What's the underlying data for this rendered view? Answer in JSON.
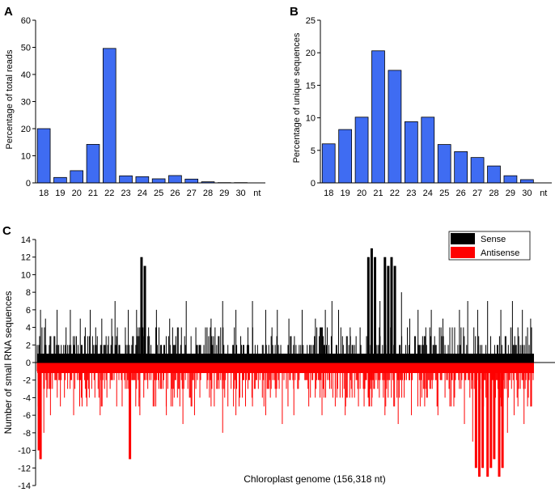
{
  "chart_data": [
    {
      "panel": "A",
      "type": "bar",
      "categories": [
        "18",
        "19",
        "20",
        "21",
        "22",
        "23",
        "24",
        "25",
        "26",
        "27",
        "28",
        "29",
        "30"
      ],
      "unit_label": "nt",
      "values": [
        20.0,
        2.0,
        4.5,
        14.2,
        49.6,
        2.6,
        2.3,
        1.5,
        2.7,
        1.4,
        0.4,
        0.1,
        0.1
      ],
      "ylabel": "Percentage of total reads",
      "ylim": [
        0,
        60
      ],
      "yticks": [
        "0",
        "10",
        "20",
        "30",
        "40",
        "50",
        "60"
      ],
      "bar_color": "#3f6cf2"
    },
    {
      "panel": "B",
      "type": "bar",
      "categories": [
        "18",
        "19",
        "20",
        "21",
        "22",
        "23",
        "24",
        "25",
        "26",
        "27",
        "28",
        "29",
        "30"
      ],
      "unit_label": "nt",
      "values": [
        6.0,
        8.2,
        10.1,
        20.3,
        17.3,
        9.4,
        10.1,
        5.9,
        4.8,
        3.9,
        2.6,
        1.1,
        0.5
      ],
      "ylabel": "Percentage of unique sequences",
      "ylim": [
        0,
        25
      ],
      "yticks": [
        "0",
        "5",
        "10",
        "15",
        "20",
        "25"
      ],
      "bar_color": "#3f6cf2"
    },
    {
      "panel": "C",
      "type": "bar",
      "xlabel": "Chloroplast genome (156,318 nt)",
      "ylabel": "Number of small RNA sequences",
      "ylim": [
        -14,
        14
      ],
      "yticks": [
        "-14",
        "-12",
        "-10",
        "-8",
        "-6",
        "-4",
        "-2",
        "0",
        "2",
        "4",
        "6",
        "8",
        "10",
        "12",
        "14"
      ],
      "legend_position": "top-right",
      "series": [
        {
          "name": "Sense",
          "color": "#000000"
        },
        {
          "name": "Antisense",
          "color": "#ff0000"
        }
      ],
      "sense_peaks": [
        {
          "x": 0.02,
          "value": 6
        },
        {
          "x": 0.05,
          "value": 5
        },
        {
          "x": 0.12,
          "value": 6
        },
        {
          "x": 0.2,
          "value": 6
        },
        {
          "x": 0.26,
          "value": 5
        },
        {
          "x": 0.32,
          "value": 6
        },
        {
          "x": 0.39,
          "value": 5
        },
        {
          "x": 0.45,
          "value": 5
        },
        {
          "x": 0.47,
          "value": 7
        },
        {
          "x": 0.55,
          "value": 6
        },
        {
          "x": 0.6,
          "value": 6
        },
        {
          "x": 0.63,
          "value": 12
        },
        {
          "x": 0.65,
          "value": 11
        },
        {
          "x": 0.72,
          "value": 6
        },
        {
          "x": 0.8,
          "value": 5
        },
        {
          "x": 0.9,
          "value": 7
        },
        {
          "x": 1.05,
          "value": 5
        },
        {
          "x": 1.12,
          "value": 7
        },
        {
          "x": 1.2,
          "value": 6
        },
        {
          "x": 1.3,
          "value": 7
        },
        {
          "x": 1.38,
          "value": 6
        },
        {
          "x": 1.45,
          "value": 6
        },
        {
          "x": 1.52,
          "value": 5
        },
        {
          "x": 1.6,
          "value": 6
        },
        {
          "x": 1.68,
          "value": 5
        },
        {
          "x": 1.74,
          "value": 6
        },
        {
          "x": 1.78,
          "value": 7
        },
        {
          "x": 1.82,
          "value": 6
        },
        {
          "x": 1.89,
          "value": 4
        },
        {
          "x": 1.95,
          "value": 4
        },
        {
          "x": 2.0,
          "value": 12
        },
        {
          "x": 2.02,
          "value": 13
        },
        {
          "x": 2.04,
          "value": 12
        },
        {
          "x": 2.07,
          "value": 7
        },
        {
          "x": 2.1,
          "value": 12
        },
        {
          "x": 2.12,
          "value": 11
        },
        {
          "x": 2.14,
          "value": 12
        },
        {
          "x": 2.16,
          "value": 11
        },
        {
          "x": 2.2,
          "value": 8
        },
        {
          "x": 2.25,
          "value": 5
        },
        {
          "x": 2.3,
          "value": 6
        },
        {
          "x": 2.38,
          "value": 6
        },
        {
          "x": 2.45,
          "value": 5
        },
        {
          "x": 2.55,
          "value": 6
        },
        {
          "x": 2.6,
          "value": 7
        },
        {
          "x": 2.66,
          "value": 6
        },
        {
          "x": 2.72,
          "value": 7
        },
        {
          "x": 2.8,
          "value": 6
        },
        {
          "x": 2.87,
          "value": 7
        },
        {
          "x": 2.93,
          "value": 6
        },
        {
          "x": 2.98,
          "value": 5
        }
      ],
      "antisense_troughs": [
        {
          "x": 0.01,
          "value": -10
        },
        {
          "x": 0.02,
          "value": -11
        },
        {
          "x": 0.04,
          "value": -8
        },
        {
          "x": 0.08,
          "value": -6
        },
        {
          "x": 0.14,
          "value": -5
        },
        {
          "x": 0.22,
          "value": -6
        },
        {
          "x": 0.3,
          "value": -5
        },
        {
          "x": 0.38,
          "value": -6
        },
        {
          "x": 0.48,
          "value": -5
        },
        {
          "x": 0.56,
          "value": -11
        },
        {
          "x": 0.62,
          "value": -6
        },
        {
          "x": 0.7,
          "value": -5
        },
        {
          "x": 0.78,
          "value": -6
        },
        {
          "x": 0.88,
          "value": -7
        },
        {
          "x": 0.95,
          "value": -6
        },
        {
          "x": 1.05,
          "value": -5
        },
        {
          "x": 1.12,
          "value": -8
        },
        {
          "x": 1.2,
          "value": -6
        },
        {
          "x": 1.3,
          "value": -5
        },
        {
          "x": 1.38,
          "value": -6
        },
        {
          "x": 1.48,
          "value": -7
        },
        {
          "x": 1.55,
          "value": -6
        },
        {
          "x": 1.64,
          "value": -5
        },
        {
          "x": 1.72,
          "value": -6
        },
        {
          "x": 1.8,
          "value": -5
        },
        {
          "x": 1.86,
          "value": -6
        },
        {
          "x": 1.94,
          "value": -5
        },
        {
          "x": 2.02,
          "value": -5
        },
        {
          "x": 2.1,
          "value": -6
        },
        {
          "x": 2.18,
          "value": -7
        },
        {
          "x": 2.26,
          "value": -6
        },
        {
          "x": 2.34,
          "value": -5
        },
        {
          "x": 2.42,
          "value": -6
        },
        {
          "x": 2.5,
          "value": -5
        },
        {
          "x": 2.58,
          "value": -7
        },
        {
          "x": 2.63,
          "value": -9
        },
        {
          "x": 2.65,
          "value": -12
        },
        {
          "x": 2.67,
          "value": -13
        },
        {
          "x": 2.69,
          "value": -12
        },
        {
          "x": 2.72,
          "value": -13
        },
        {
          "x": 2.74,
          "value": -12
        },
        {
          "x": 2.76,
          "value": -11
        },
        {
          "x": 2.79,
          "value": -13
        },
        {
          "x": 2.81,
          "value": -12
        },
        {
          "x": 2.84,
          "value": -8
        },
        {
          "x": 2.88,
          "value": -6
        },
        {
          "x": 2.94,
          "value": -7
        },
        {
          "x": 2.98,
          "value": -5
        }
      ]
    }
  ]
}
